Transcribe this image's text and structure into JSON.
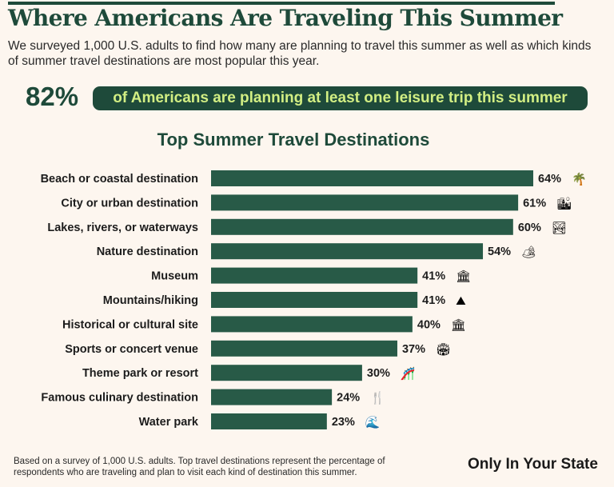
{
  "header": {
    "title": "Where Americans Are Traveling This Summer",
    "subtitle": "We surveyed 1,000 U.S. adults to find how many are planning to travel this summer as well as which kinds of summer travel destinations are most popular this year."
  },
  "highlight": {
    "value": "82%",
    "text": "of Americans are planning at least one leisure trip this summer"
  },
  "chart_data": {
    "type": "bar",
    "orientation": "horizontal",
    "title": "Top Summer Travel Destinations",
    "categories": [
      "Beach or coastal destination",
      "City or urban destination",
      "Lakes, rivers, or waterways",
      "Nature destination",
      "Museum",
      "Mountains/hiking",
      "Historical or cultural site",
      "Sports or concert venue",
      "Theme park or resort",
      "Famous culinary destination",
      "Water park"
    ],
    "values": [
      64,
      61,
      60,
      54,
      41,
      41,
      40,
      37,
      30,
      24,
      23
    ],
    "value_labels": [
      "64%",
      "61%",
      "60%",
      "54%",
      "41%",
      "41%",
      "40%",
      "37%",
      "30%",
      "24%",
      "23%"
    ],
    "icons": [
      "palm-tree-icon",
      "city-buildings-icon",
      "lake-icon",
      "nature-park-icon",
      "museum-icon",
      "mountain-icon",
      "capitol-building-icon",
      "stadium-icon",
      "roller-coaster-icon",
      "fork-knife-icon",
      "water-slide-icon"
    ],
    "icon_glyphs": [
      "🌴",
      "🏙",
      "🏞",
      "🏕",
      "🏛",
      "⛰",
      "🏛",
      "🏟",
      "🎢",
      "🍴",
      "🌊"
    ],
    "bar_color": "#285a47",
    "grid": false,
    "xlim": [
      0,
      64
    ]
  },
  "footer": {
    "note": "Based on a survey of 1,000 U.S. adults. Top travel destinations represent the percentage of respondents who are traveling and plan to visit each kind of destination this summer.",
    "brand": "Only In Your State"
  }
}
